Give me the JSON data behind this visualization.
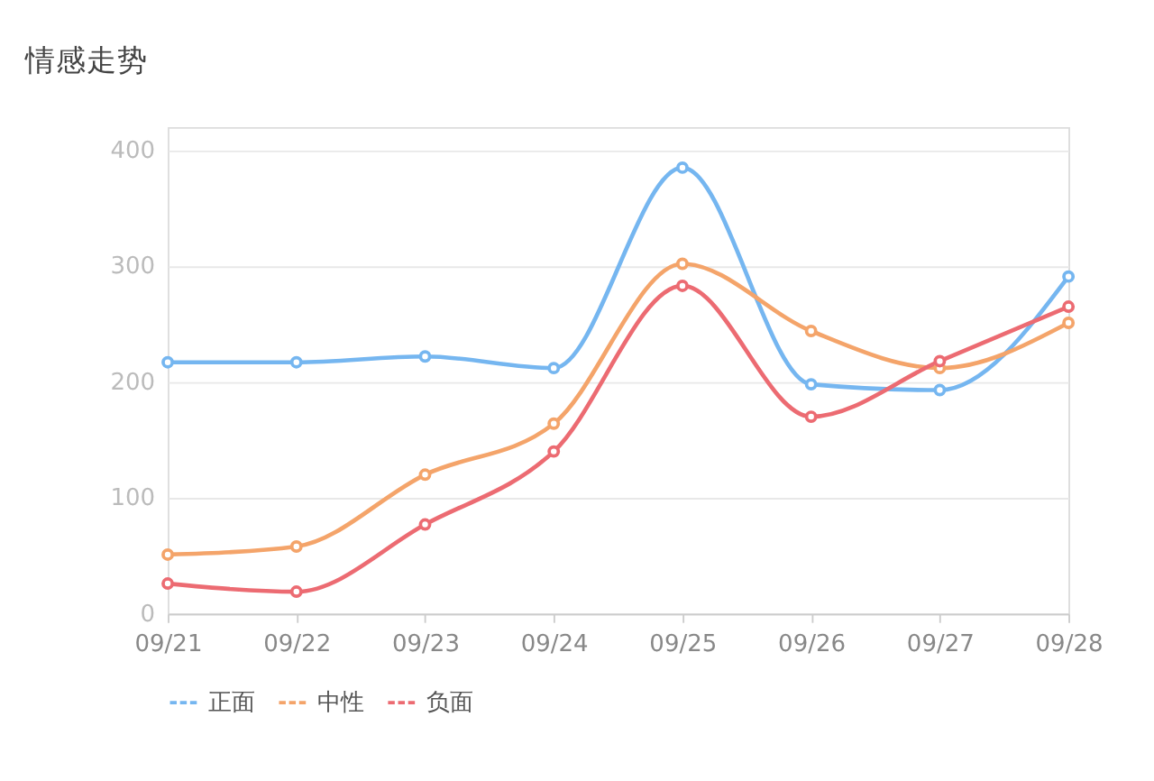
{
  "chart_data": {
    "type": "line",
    "title": "情感走势",
    "categories": [
      "09/21",
      "09/22",
      "09/23",
      "09/24",
      "09/25",
      "09/26",
      "09/27",
      "09/28"
    ],
    "series": [
      {
        "name": "正面",
        "color": "#75b6f0",
        "values": [
          217,
          217,
          222,
          212,
          385,
          198,
          193,
          291
        ]
      },
      {
        "name": "中性",
        "color": "#f4a46a",
        "values": [
          51,
          58,
          120,
          164,
          302,
          244,
          212,
          251
        ]
      },
      {
        "name": "负面",
        "color": "#ec6b72",
        "values": [
          26,
          19,
          77,
          140,
          283,
          170,
          218,
          265
        ]
      }
    ],
    "ylim": [
      0,
      420
    ],
    "yticks": [
      0,
      100,
      200,
      300,
      400
    ],
    "grid": "y",
    "legend": "bottom",
    "marker": "circle",
    "line_style": "solid"
  }
}
